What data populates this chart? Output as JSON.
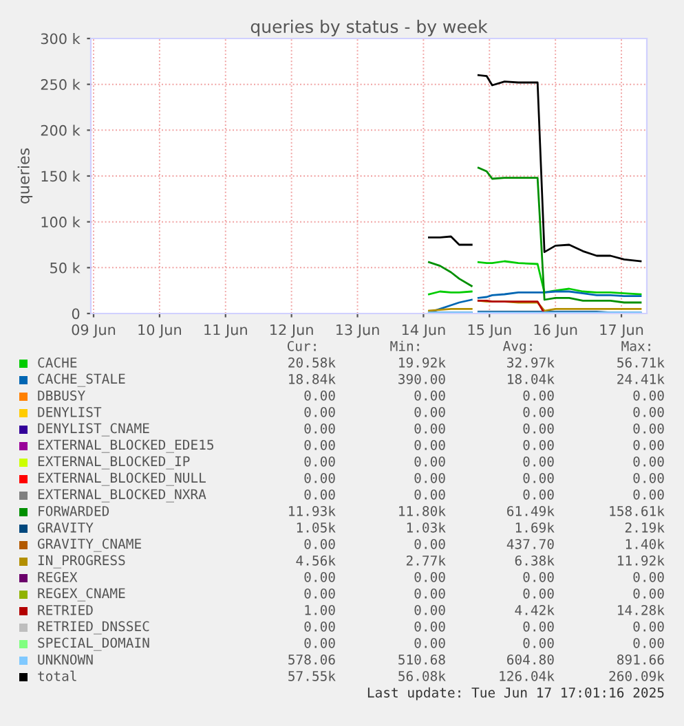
{
  "chart_data": {
    "type": "line",
    "title": "queries by status - by week",
    "ylabel": "queries",
    "x": [
      "2025-06-14T02:00",
      "2025-06-14T06:00",
      "2025-06-14T10:00",
      "2025-06-14T13:00",
      "2025-06-14T17:30",
      "2025-06-14T18:30",
      "2025-06-14T20:00",
      "2025-06-14T23:00",
      "2025-06-15T01:00",
      "2025-06-15T05:30",
      "2025-06-15T10:30",
      "2025-06-15T17:30",
      "2025-06-15T20:00",
      "2025-06-16T00:00",
      "2025-06-16T05:00",
      "2025-06-16T10:00",
      "2025-06-16T15:00",
      "2025-06-16T20:00",
      "2025-06-17T01:00",
      "2025-06-17T07:00"
    ],
    "series": [
      {
        "name": "CACHE",
        "color": "#00cc00",
        "values": [
          21000,
          24000,
          23000,
          23000,
          24000,
          null,
          56000,
          55000,
          55000,
          57000,
          55000,
          54000,
          23000,
          25000,
          27000,
          24000,
          23000,
          23000,
          22000,
          21000
        ]
      },
      {
        "name": "CACHE_STALE",
        "color": "#0066b3",
        "values": [
          1000,
          5000,
          9000,
          12000,
          15000,
          null,
          17000,
          18000,
          20000,
          21000,
          23000,
          23000,
          23000,
          24000,
          24000,
          22000,
          20000,
          20000,
          19000,
          19000
        ]
      },
      {
        "name": "DBBUSY",
        "color": "#ff8000",
        "values": [
          null,
          null,
          null,
          null,
          null,
          null,
          null,
          null,
          null,
          null,
          null,
          null,
          null,
          null,
          null,
          null,
          null,
          null,
          null,
          null
        ]
      },
      {
        "name": "DENYLIST",
        "color": "#ffcc00",
        "values": [
          null,
          null,
          null,
          null,
          null,
          null,
          null,
          null,
          null,
          null,
          null,
          null,
          null,
          null,
          null,
          null,
          null,
          null,
          null,
          null
        ]
      },
      {
        "name": "DENYLIST_CNAME",
        "color": "#330099",
        "values": [
          null,
          null,
          null,
          null,
          null,
          null,
          null,
          null,
          null,
          null,
          null,
          null,
          null,
          null,
          null,
          null,
          null,
          null,
          null,
          null
        ]
      },
      {
        "name": "EXTERNAL_BLOCKED_EDE15",
        "color": "#990099",
        "values": [
          null,
          null,
          null,
          null,
          null,
          null,
          null,
          null,
          null,
          null,
          null,
          null,
          null,
          null,
          null,
          null,
          null,
          null,
          null,
          null
        ]
      },
      {
        "name": "EXTERNAL_BLOCKED_IP",
        "color": "#ccff00",
        "values": [
          null,
          null,
          null,
          null,
          null,
          null,
          null,
          null,
          null,
          null,
          null,
          null,
          null,
          null,
          null,
          null,
          null,
          null,
          null,
          null
        ]
      },
      {
        "name": "EXTERNAL_BLOCKED_NULL",
        "color": "#ff0000",
        "values": [
          null,
          null,
          null,
          null,
          null,
          null,
          null,
          null,
          null,
          null,
          null,
          null,
          null,
          null,
          null,
          null,
          null,
          null,
          null,
          null
        ]
      },
      {
        "name": "EXTERNAL_BLOCKED_NXRA",
        "color": "#808080",
        "values": [
          null,
          null,
          null,
          null,
          null,
          null,
          null,
          null,
          null,
          null,
          null,
          null,
          null,
          null,
          null,
          null,
          null,
          null,
          null,
          null
        ]
      },
      {
        "name": "FORWARDED",
        "color": "#008f00",
        "values": [
          56000,
          52000,
          45000,
          38000,
          30000,
          null,
          159000,
          155000,
          147000,
          148000,
          148000,
          148000,
          15000,
          17000,
          17000,
          14000,
          14000,
          14000,
          12000,
          12000
        ]
      },
      {
        "name": "GRAVITY",
        "color": "#00487d",
        "values": [
          1000,
          1000,
          1000,
          1000,
          1000,
          null,
          2000,
          2000,
          2000,
          2000,
          2000,
          2000,
          2000,
          2000,
          2000,
          2000,
          2000,
          1000,
          1000,
          1000
        ]
      },
      {
        "name": "GRAVITY_CNAME",
        "color": "#b35a00",
        "values": [
          null,
          null,
          null,
          null,
          null,
          null,
          null,
          null,
          null,
          null,
          null,
          null,
          null,
          null,
          null,
          null,
          null,
          null,
          null,
          null
        ]
      },
      {
        "name": "IN_PROGRESS",
        "color": "#b38f00",
        "values": [
          3000,
          4000,
          5000,
          5000,
          5000,
          null,
          14000,
          13000,
          13000,
          13000,
          12000,
          12000,
          3000,
          5000,
          5000,
          5000,
          5000,
          5000,
          5000,
          5000
        ]
      },
      {
        "name": "REGEX",
        "color": "#6b006b",
        "values": [
          null,
          null,
          null,
          null,
          null,
          null,
          null,
          null,
          null,
          null,
          null,
          null,
          null,
          null,
          null,
          null,
          null,
          null,
          null,
          null
        ]
      },
      {
        "name": "REGEX_CNAME",
        "color": "#8fb300",
        "values": [
          null,
          null,
          null,
          null,
          null,
          null,
          null,
          null,
          null,
          null,
          null,
          null,
          null,
          null,
          null,
          null,
          null,
          null,
          null,
          null
        ]
      },
      {
        "name": "RETRIED",
        "color": "#b30000",
        "values": [
          null,
          null,
          null,
          null,
          null,
          null,
          14000,
          14000,
          13000,
          13000,
          13000,
          13000,
          0,
          null,
          null,
          null,
          null,
          null,
          null,
          null
        ]
      },
      {
        "name": "RETRIED_DNSSEC",
        "color": "#bebebe",
        "values": [
          null,
          null,
          null,
          null,
          null,
          null,
          null,
          null,
          null,
          null,
          null,
          null,
          null,
          null,
          null,
          null,
          null,
          null,
          null,
          null
        ]
      },
      {
        "name": "SPECIAL_DOMAIN",
        "color": "#80ff80",
        "values": [
          null,
          null,
          null,
          null,
          null,
          null,
          null,
          null,
          null,
          null,
          null,
          null,
          null,
          null,
          null,
          null,
          null,
          null,
          null,
          null
        ]
      },
      {
        "name": "UNKNOWN",
        "color": "#80c9ff",
        "values": [
          1000,
          1000,
          1000,
          1000,
          1000,
          null,
          1000,
          1000,
          1000,
          1000,
          1000,
          1000,
          1000,
          1000,
          1000,
          1000,
          1000,
          1000,
          1000,
          1000
        ]
      },
      {
        "name": "total",
        "color": "#000000",
        "values": [
          83000,
          83000,
          84000,
          75000,
          75000,
          null,
          260000,
          259000,
          249000,
          253000,
          252000,
          252000,
          67000,
          74000,
          75000,
          68000,
          63000,
          63000,
          59000,
          57000
        ]
      }
    ],
    "xlim": [
      "2025-06-08T23:00",
      "2025-06-17T09:15"
    ],
    "xticks": [
      {
        "value": "2025-06-09",
        "label": "09 Jun"
      },
      {
        "value": "2025-06-10",
        "label": "10 Jun"
      },
      {
        "value": "2025-06-11",
        "label": "11 Jun"
      },
      {
        "value": "2025-06-12",
        "label": "12 Jun"
      },
      {
        "value": "2025-06-13",
        "label": "13 Jun"
      },
      {
        "value": "2025-06-14",
        "label": "14 Jun"
      },
      {
        "value": "2025-06-15",
        "label": "15 Jun"
      },
      {
        "value": "2025-06-16",
        "label": "16 Jun"
      },
      {
        "value": "2025-06-17",
        "label": "17 Jun"
      }
    ],
    "ylim": [
      0,
      300000
    ],
    "yticks": [
      0,
      {
        "value": 50000,
        "label": "50 k"
      },
      {
        "value": 100000,
        "label": "100 k"
      },
      {
        "value": 150000,
        "label": "150 k"
      },
      {
        "value": 200000,
        "label": "200 k"
      },
      {
        "value": 250000,
        "label": "250 k"
      },
      {
        "value": 300000,
        "label": "300 k"
      }
    ],
    "grid": true,
    "legend": "bottom",
    "marker": "none",
    "line_style": "solid",
    "annotations": [
      "Cur: Min: Avg: Max:",
      "20.58k 19.92k 32.97k 56.71k",
      "18.84k 390.00 18.04k 24.41k",
      "0.00 0.00 0.00 0.00",
      "0.00 0.00 0.00 0.00",
      "0.00 0.00 0.00 0.00",
      "0.00 0.00 0.00 0.00",
      "0.00 0.00 0.00 0.00",
      "0.00 0.00 0.00 0.00",
      "0.00 0.00 0.00 0.00",
      "11.93k 11.80k 61.49k 158.61k",
      "1.05k 1.03k 1.69k 2.19k",
      "0.00 0.00 437.70 1.40k",
      "4.56k 2.77k 6.38k 11.92k",
      "0.00 0.00 0.00 0.00",
      "0.00 0.00 0.00 0.00",
      "1.00 0.00 4.42k 14.28k",
      "0.00 0.00 0.00 0.00",
      "0.00 0.00 0.00 0.00",
      "578.06 510.68 604.80 891.66",
      "57.55k 56.08k 126.04k 260.09k",
      "Last update: Tue Jun 17 17:01:16 2025"
    ]
  }
}
